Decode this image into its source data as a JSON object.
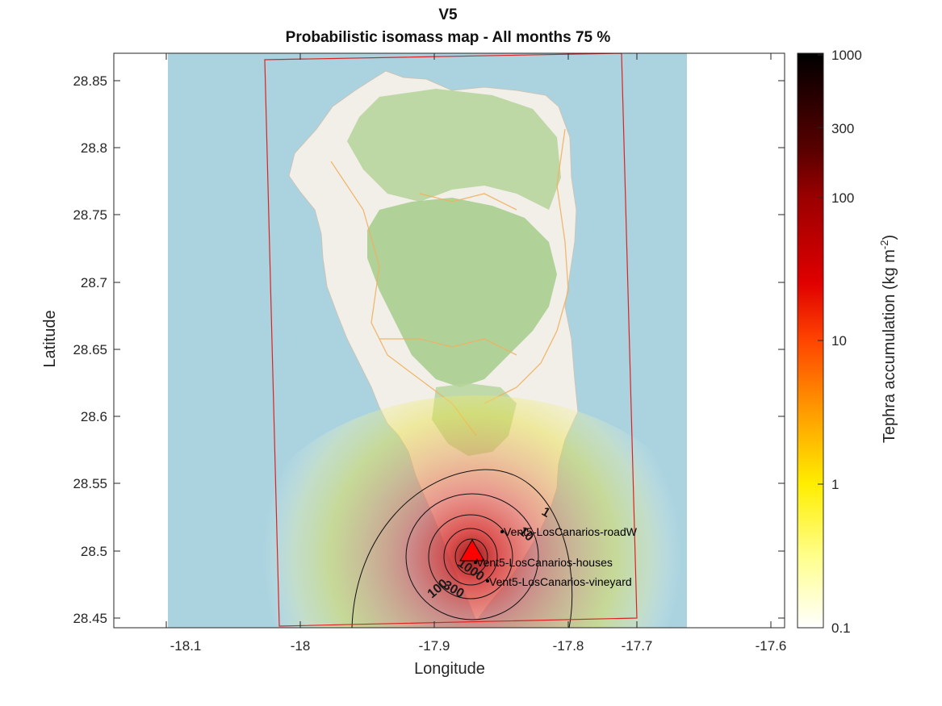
{
  "figure": {
    "title_line1": "V5",
    "title_line2": "Probabilistic isomass map - All months 75 %",
    "xlabel": "Longitude",
    "ylabel": "Latitude",
    "x_ticks": [
      "-18.1",
      "-18",
      "-17.9",
      "-17.8",
      "-17.7",
      "-17.6"
    ],
    "y_ticks": [
      "28.85",
      "28.8",
      "28.75",
      "28.7",
      "28.65",
      "28.6",
      "28.55",
      "28.5",
      "28.45"
    ]
  },
  "colorbar": {
    "label": "Tephra accumulation (kg m",
    "label_exp": "-2",
    "label_close": ")",
    "ticks": [
      "1000",
      "300",
      "100",
      "10",
      "1",
      "0.1"
    ],
    "colors": [
      "#000000",
      "#5a0000",
      "#b00000",
      "#ff2200",
      "#ff8800",
      "#ffee00",
      "#ffffb0",
      "#ffffff"
    ]
  },
  "map": {
    "sea_color": "#aad3df",
    "land_color": "#f2efe9",
    "forest_color": "#b7d59c",
    "vent_color": "#ff0000",
    "domain_color": "#dd2222"
  },
  "contours": [
    "1",
    "10",
    "100",
    "300",
    "1000"
  ],
  "sites": [
    {
      "name": "Vent5-LosCanarios-roadW"
    },
    {
      "name": "Vent5-LosCanarios-houses"
    },
    {
      "name": "Vent5-LosCanarios-vineyard"
    }
  ]
}
